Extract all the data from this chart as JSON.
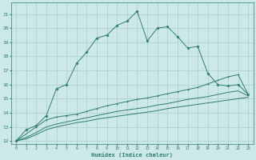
{
  "xlabel": "Humidex (Indice chaleur)",
  "xlim": [
    -0.5,
    23.5
  ],
  "ylim": [
    11.8,
    21.8
  ],
  "yticks": [
    12,
    13,
    14,
    15,
    16,
    17,
    18,
    19,
    20,
    21
  ],
  "xticks": [
    0,
    1,
    2,
    3,
    4,
    5,
    6,
    7,
    8,
    9,
    10,
    11,
    12,
    13,
    14,
    15,
    16,
    17,
    18,
    19,
    20,
    21,
    22,
    23
  ],
  "bg_color": "#cce8e8",
  "grid_color": "#aacece",
  "line_color": "#2e7d6e",
  "line1_x": [
    0,
    1,
    2,
    3,
    4,
    5,
    6,
    7,
    8,
    9,
    10,
    11,
    12,
    13,
    14,
    15,
    16,
    17,
    18,
    19,
    20,
    21,
    22,
    23
  ],
  "line1_y": [
    12.0,
    12.8,
    13.1,
    13.8,
    15.7,
    16.0,
    17.5,
    18.3,
    19.3,
    19.5,
    20.2,
    20.5,
    21.2,
    19.1,
    20.0,
    20.1,
    19.4,
    18.6,
    18.7,
    16.8,
    16.0,
    15.9,
    16.0,
    15.3
  ],
  "line2_x": [
    0,
    2,
    3,
    4,
    5,
    6,
    7,
    8,
    9,
    10,
    11,
    12,
    13,
    14,
    15,
    16,
    17,
    18,
    19,
    20,
    21,
    22,
    23
  ],
  "line2_y": [
    12.0,
    13.0,
    13.5,
    13.7,
    13.8,
    13.9,
    14.1,
    14.3,
    14.5,
    14.65,
    14.8,
    14.95,
    15.05,
    15.2,
    15.35,
    15.5,
    15.65,
    15.8,
    16.05,
    16.3,
    16.55,
    16.7,
    15.3
  ],
  "line3_x": [
    0,
    1,
    2,
    3,
    4,
    5,
    6,
    7,
    8,
    9,
    10,
    11,
    12,
    13,
    14,
    15,
    16,
    17,
    18,
    19,
    20,
    21,
    22,
    23
  ],
  "line3_y": [
    12.0,
    12.25,
    12.6,
    13.0,
    13.2,
    13.35,
    13.5,
    13.65,
    13.8,
    13.95,
    14.1,
    14.2,
    14.3,
    14.4,
    14.55,
    14.65,
    14.8,
    14.95,
    15.05,
    15.15,
    15.3,
    15.45,
    15.55,
    15.2
  ],
  "line4_x": [
    0,
    1,
    2,
    3,
    4,
    5,
    6,
    7,
    8,
    9,
    10,
    11,
    12,
    13,
    14,
    15,
    16,
    17,
    18,
    19,
    20,
    21,
    22,
    23
  ],
  "line4_y": [
    12.0,
    12.15,
    12.45,
    12.8,
    13.0,
    13.15,
    13.3,
    13.4,
    13.55,
    13.65,
    13.75,
    13.85,
    13.95,
    14.05,
    14.15,
    14.3,
    14.4,
    14.5,
    14.6,
    14.7,
    14.8,
    14.9,
    15.0,
    15.1
  ]
}
